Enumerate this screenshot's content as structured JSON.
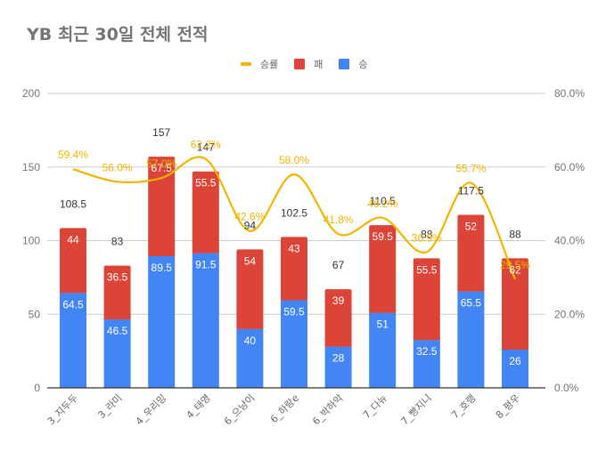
{
  "chart_data": {
    "type": "bar",
    "stacked": true,
    "title": "YB 최근 30일 전체 전적",
    "xlabel": "",
    "ylabel": "",
    "categories": [
      "3_지두두",
      "3_라미",
      "4_우리밍",
      "4_태영",
      "6_으냥이",
      "6_하랑e",
      "6_박하악",
      "7_다뉴",
      "7_빵지니",
      "7_호랭",
      "8_평우"
    ],
    "series": [
      {
        "name": "승",
        "type": "bar",
        "axis": "left",
        "color": "#4285F4",
        "values": [
          64.5,
          46.5,
          89.5,
          91.5,
          40,
          59.5,
          28,
          51,
          32.5,
          65.5,
          26
        ]
      },
      {
        "name": "패",
        "type": "bar",
        "axis": "left",
        "color": "#DB4437",
        "values": [
          44,
          36.5,
          67.5,
          55.5,
          54,
          43,
          39,
          59.5,
          55.5,
          52,
          62
        ]
      },
      {
        "name": "승률",
        "type": "line",
        "axis": "right",
        "color": "#F4B400",
        "smooth": true,
        "values": [
          59.4,
          56.0,
          57.0,
          62.2,
          42.6,
          58.0,
          41.8,
          46.2,
          36.9,
          55.7,
          29.5
        ],
        "labels": [
          "59.4%",
          "56.0%",
          "57.0%",
          "62.2%",
          "42.6%",
          "58.0%",
          "41.8%",
          "46.2%",
          "36.9%",
          "55.7%",
          "29.5%"
        ]
      }
    ],
    "totals": [
      108.5,
      83,
      157,
      147,
      94,
      102.5,
      67,
      110.5,
      88,
      117.5,
      88
    ],
    "total_labels": [
      "108.5",
      "83",
      "157",
      "147",
      "94",
      "102.5",
      "67",
      "110.5",
      "88",
      "117.5",
      "88"
    ],
    "win_labels": [
      "64.5",
      "46.5",
      "89.5",
      "91.5",
      "40",
      "59.5",
      "28",
      "51",
      "32.5",
      "65.5",
      "26"
    ],
    "loss_labels": [
      "44",
      "36.5",
      "67.5",
      "55.5",
      "54",
      "43",
      "39",
      "59.5",
      "55.5",
      "52",
      "62"
    ],
    "ylim": [
      0,
      200
    ],
    "yticks": [
      0,
      50,
      100,
      150,
      200
    ],
    "ytick_labels": [
      "0",
      "50",
      "100",
      "150",
      "200"
    ],
    "y2lim": [
      0,
      80
    ],
    "y2ticks": [
      0,
      20,
      40,
      60,
      80
    ],
    "y2tick_labels": [
      "0.0%",
      "20.0%",
      "40.0%",
      "60.0%",
      "80.0%"
    ],
    "grid": true,
    "legend": {
      "position": "top",
      "entries": [
        {
          "label": "승률",
          "kind": "line",
          "color": "#F4B400"
        },
        {
          "label": "패",
          "kind": "box",
          "color": "#DB4437"
        },
        {
          "label": "승",
          "kind": "box",
          "color": "#4285F4"
        }
      ]
    }
  }
}
